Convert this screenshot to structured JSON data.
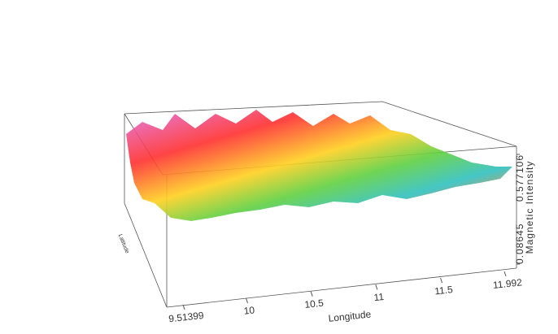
{
  "chart_data": {
    "type": "surface3d",
    "xlabel": "Longitude",
    "ylabel": "Latitude",
    "zlabel": "Magnetic Intensity",
    "xlim": [
      9.51399,
      11.992
    ],
    "xticks": [
      9.51399,
      10,
      10.5,
      11,
      11.5,
      11.992
    ],
    "zlim": [
      0.08645,
      0.577106
    ],
    "zticks": [
      0.08645,
      0.577106
    ]
  }
}
